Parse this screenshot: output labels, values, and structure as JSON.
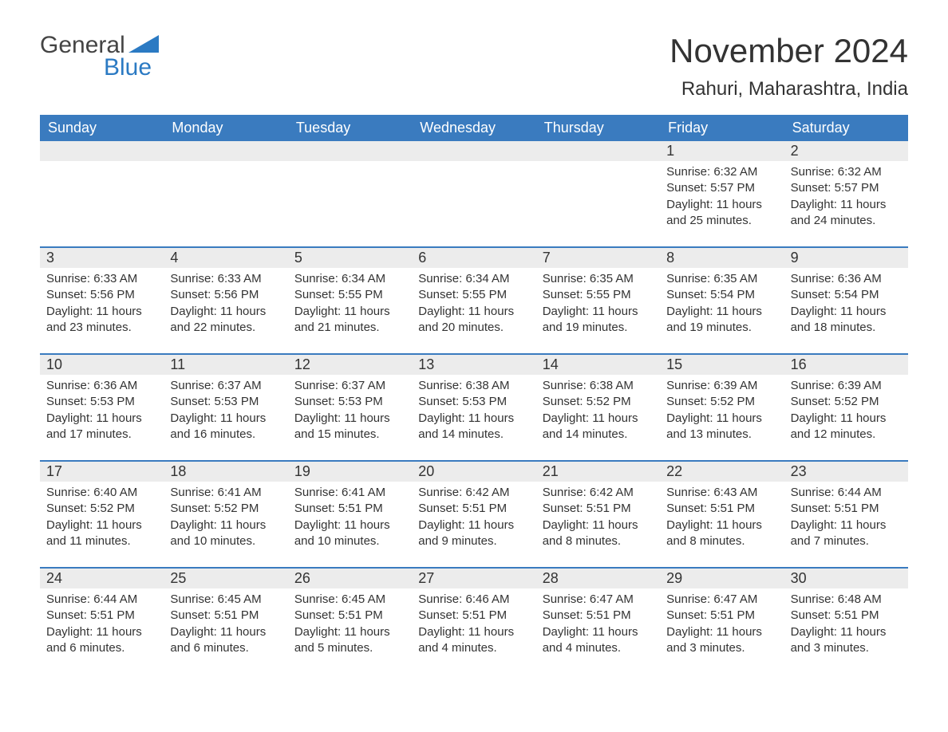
{
  "brand": {
    "word1": "General",
    "word2": "Blue",
    "accent": "#2b7ac3",
    "logo_text_color": "#444444"
  },
  "title": {
    "main": "November 2024",
    "sub": "Rahuri, Maharashtra, India"
  },
  "colors": {
    "header_bg": "#3a7bbf",
    "header_text": "#ffffff",
    "daynum_bg": "#ececec",
    "text": "#333333",
    "rule": "#3a7bbf",
    "page_bg": "#ffffff"
  },
  "font_sizes": {
    "title_main": 42,
    "title_sub": 24,
    "dow": 18,
    "daynum": 18,
    "body": 15,
    "logo": 30
  },
  "days_of_week": [
    "Sunday",
    "Monday",
    "Tuesday",
    "Wednesday",
    "Thursday",
    "Friday",
    "Saturday"
  ],
  "weeks": [
    [
      null,
      null,
      null,
      null,
      null,
      {
        "n": "1",
        "sunrise": "6:32 AM",
        "sunset": "5:57 PM",
        "daylight": "11 hours and 25 minutes."
      },
      {
        "n": "2",
        "sunrise": "6:32 AM",
        "sunset": "5:57 PM",
        "daylight": "11 hours and 24 minutes."
      }
    ],
    [
      {
        "n": "3",
        "sunrise": "6:33 AM",
        "sunset": "5:56 PM",
        "daylight": "11 hours and 23 minutes."
      },
      {
        "n": "4",
        "sunrise": "6:33 AM",
        "sunset": "5:56 PM",
        "daylight": "11 hours and 22 minutes."
      },
      {
        "n": "5",
        "sunrise": "6:34 AM",
        "sunset": "5:55 PM",
        "daylight": "11 hours and 21 minutes."
      },
      {
        "n": "6",
        "sunrise": "6:34 AM",
        "sunset": "5:55 PM",
        "daylight": "11 hours and 20 minutes."
      },
      {
        "n": "7",
        "sunrise": "6:35 AM",
        "sunset": "5:55 PM",
        "daylight": "11 hours and 19 minutes."
      },
      {
        "n": "8",
        "sunrise": "6:35 AM",
        "sunset": "5:54 PM",
        "daylight": "11 hours and 19 minutes."
      },
      {
        "n": "9",
        "sunrise": "6:36 AM",
        "sunset": "5:54 PM",
        "daylight": "11 hours and 18 minutes."
      }
    ],
    [
      {
        "n": "10",
        "sunrise": "6:36 AM",
        "sunset": "5:53 PM",
        "daylight": "11 hours and 17 minutes."
      },
      {
        "n": "11",
        "sunrise": "6:37 AM",
        "sunset": "5:53 PM",
        "daylight": "11 hours and 16 minutes."
      },
      {
        "n": "12",
        "sunrise": "6:37 AM",
        "sunset": "5:53 PM",
        "daylight": "11 hours and 15 minutes."
      },
      {
        "n": "13",
        "sunrise": "6:38 AM",
        "sunset": "5:53 PM",
        "daylight": "11 hours and 14 minutes."
      },
      {
        "n": "14",
        "sunrise": "6:38 AM",
        "sunset": "5:52 PM",
        "daylight": "11 hours and 14 minutes."
      },
      {
        "n": "15",
        "sunrise": "6:39 AM",
        "sunset": "5:52 PM",
        "daylight": "11 hours and 13 minutes."
      },
      {
        "n": "16",
        "sunrise": "6:39 AM",
        "sunset": "5:52 PM",
        "daylight": "11 hours and 12 minutes."
      }
    ],
    [
      {
        "n": "17",
        "sunrise": "6:40 AM",
        "sunset": "5:52 PM",
        "daylight": "11 hours and 11 minutes."
      },
      {
        "n": "18",
        "sunrise": "6:41 AM",
        "sunset": "5:52 PM",
        "daylight": "11 hours and 10 minutes."
      },
      {
        "n": "19",
        "sunrise": "6:41 AM",
        "sunset": "5:51 PM",
        "daylight": "11 hours and 10 minutes."
      },
      {
        "n": "20",
        "sunrise": "6:42 AM",
        "sunset": "5:51 PM",
        "daylight": "11 hours and 9 minutes."
      },
      {
        "n": "21",
        "sunrise": "6:42 AM",
        "sunset": "5:51 PM",
        "daylight": "11 hours and 8 minutes."
      },
      {
        "n": "22",
        "sunrise": "6:43 AM",
        "sunset": "5:51 PM",
        "daylight": "11 hours and 8 minutes."
      },
      {
        "n": "23",
        "sunrise": "6:44 AM",
        "sunset": "5:51 PM",
        "daylight": "11 hours and 7 minutes."
      }
    ],
    [
      {
        "n": "24",
        "sunrise": "6:44 AM",
        "sunset": "5:51 PM",
        "daylight": "11 hours and 6 minutes."
      },
      {
        "n": "25",
        "sunrise": "6:45 AM",
        "sunset": "5:51 PM",
        "daylight": "11 hours and 6 minutes."
      },
      {
        "n": "26",
        "sunrise": "6:45 AM",
        "sunset": "5:51 PM",
        "daylight": "11 hours and 5 minutes."
      },
      {
        "n": "27",
        "sunrise": "6:46 AM",
        "sunset": "5:51 PM",
        "daylight": "11 hours and 4 minutes."
      },
      {
        "n": "28",
        "sunrise": "6:47 AM",
        "sunset": "5:51 PM",
        "daylight": "11 hours and 4 minutes."
      },
      {
        "n": "29",
        "sunrise": "6:47 AM",
        "sunset": "5:51 PM",
        "daylight": "11 hours and 3 minutes."
      },
      {
        "n": "30",
        "sunrise": "6:48 AM",
        "sunset": "5:51 PM",
        "daylight": "11 hours and 3 minutes."
      }
    ]
  ],
  "labels": {
    "sunrise": "Sunrise:",
    "sunset": "Sunset:",
    "daylight": "Daylight:"
  }
}
